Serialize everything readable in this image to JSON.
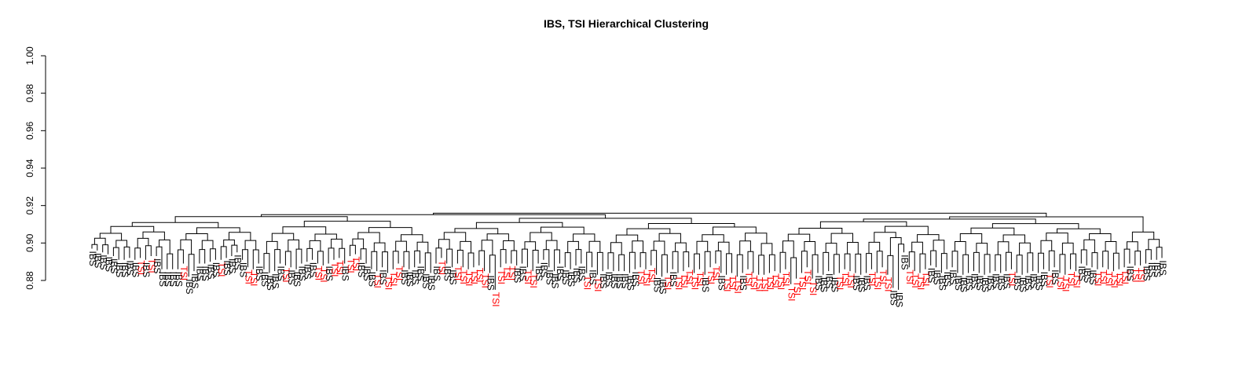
{
  "chart_data": {
    "type": "dendrogram",
    "title": "IBS, TSI Hierarchical Clustering",
    "xlabel": "",
    "ylabel": "",
    "ylim": [
      0.88,
      1.0
    ],
    "y_ticks": [
      "0.88",
      "0.90",
      "0.92",
      "0.94",
      "0.96",
      "0.98",
      "1.00"
    ],
    "root_height": 0.916,
    "grid": false,
    "colors": {
      "IBS": "#000000",
      "TSI": "#ff0000",
      "branches": "#000000"
    },
    "leaves": [
      {
        "label": "IBS",
        "h": 0.897
      },
      {
        "label": "IBS",
        "h": 0.896
      },
      {
        "label": "IBS",
        "h": 0.895
      },
      {
        "label": "IBS",
        "h": 0.894
      },
      {
        "label": "IBS",
        "h": 0.893
      },
      {
        "label": "IBS",
        "h": 0.891
      },
      {
        "label": "IBS",
        "h": 0.891
      },
      {
        "label": "IBS",
        "h": 0.892
      },
      {
        "label": "IBS",
        "h": 0.891
      },
      {
        "label": "TSI",
        "h": 0.892
      },
      {
        "label": "IBS",
        "h": 0.891
      },
      {
        "label": "TSI",
        "h": 0.893
      },
      {
        "label": "IBS",
        "h": 0.893
      },
      {
        "label": "IBS",
        "h": 0.886
      },
      {
        "label": "IBS",
        "h": 0.886
      },
      {
        "label": "IBS",
        "h": 0.886
      },
      {
        "label": "IBS",
        "h": 0.886
      },
      {
        "label": "TSI",
        "h": 0.889
      },
      {
        "label": "IBS",
        "h": 0.882
      },
      {
        "label": "IBS",
        "h": 0.885
      },
      {
        "label": "IBS",
        "h": 0.889
      },
      {
        "label": "IBS",
        "h": 0.889
      },
      {
        "label": "IBS",
        "h": 0.89
      },
      {
        "label": "IBS",
        "h": 0.891
      },
      {
        "label": "TSI",
        "h": 0.891
      },
      {
        "label": "IBS",
        "h": 0.892
      },
      {
        "label": "IBS",
        "h": 0.893
      },
      {
        "label": "IBS",
        "h": 0.895
      },
      {
        "label": "IBS",
        "h": 0.891
      },
      {
        "label": "TSI",
        "h": 0.887
      },
      {
        "label": "TSI",
        "h": 0.886
      },
      {
        "label": "IBS",
        "h": 0.889
      },
      {
        "label": "IBS",
        "h": 0.886
      },
      {
        "label": "IBS",
        "h": 0.884
      },
      {
        "label": "IBS",
        "h": 0.885
      },
      {
        "label": "IBS",
        "h": 0.889
      },
      {
        "label": "TSI",
        "h": 0.888
      },
      {
        "label": "IBS",
        "h": 0.887
      },
      {
        "label": "IBS",
        "h": 0.886
      },
      {
        "label": "IBS",
        "h": 0.889
      },
      {
        "label": "IBS",
        "h": 0.89
      },
      {
        "label": "IBS",
        "h": 0.891
      },
      {
        "label": "TSI",
        "h": 0.889
      },
      {
        "label": "TSI",
        "h": 0.888
      },
      {
        "label": "IBS",
        "h": 0.889
      },
      {
        "label": "TSI",
        "h": 0.891
      },
      {
        "label": "TSI",
        "h": 0.892
      },
      {
        "label": "IBS",
        "h": 0.889
      },
      {
        "label": "TSI",
        "h": 0.893
      },
      {
        "label": "TSI",
        "h": 0.894
      },
      {
        "label": "IBS",
        "h": 0.891
      },
      {
        "label": "IBS",
        "h": 0.889
      },
      {
        "label": "IBS",
        "h": 0.886
      },
      {
        "label": "TSI",
        "h": 0.885
      },
      {
        "label": "IBS",
        "h": 0.887
      },
      {
        "label": "TSI",
        "h": 0.884
      },
      {
        "label": "TSI",
        "h": 0.886
      },
      {
        "label": "TSI",
        "h": 0.889
      },
      {
        "label": "IBS",
        "h": 0.887
      },
      {
        "label": "IBS",
        "h": 0.886
      },
      {
        "label": "IBS",
        "h": 0.887
      },
      {
        "label": "IBS",
        "h": 0.889
      },
      {
        "label": "IBS",
        "h": 0.885
      },
      {
        "label": "IBS",
        "h": 0.884
      },
      {
        "label": "IBS",
        "h": 0.889
      },
      {
        "label": "TSI",
        "h": 0.892
      },
      {
        "label": "IBS",
        "h": 0.889
      },
      {
        "label": "IBS",
        "h": 0.887
      },
      {
        "label": "TSI",
        "h": 0.889
      },
      {
        "label": "TSI",
        "h": 0.887
      },
      {
        "label": "TSI",
        "h": 0.886
      },
      {
        "label": "TSI",
        "h": 0.887
      },
      {
        "label": "TSI",
        "h": 0.888
      },
      {
        "label": "TSI",
        "h": 0.885
      },
      {
        "label": "IBS",
        "h": 0.884
      },
      {
        "label": "TSI",
        "h": 0.875
      },
      {
        "label": "TSI",
        "h": 0.887
      },
      {
        "label": "TSI",
        "h": 0.889
      },
      {
        "label": "TSI",
        "h": 0.889
      },
      {
        "label": "IBS",
        "h": 0.888
      },
      {
        "label": "IBS",
        "h": 0.889
      },
      {
        "label": "TSI",
        "h": 0.887
      },
      {
        "label": "TSI",
        "h": 0.885
      },
      {
        "label": "IBS",
        "h": 0.889
      },
      {
        "label": "IBS",
        "h": 0.891
      },
      {
        "label": "IBS",
        "h": 0.887
      },
      {
        "label": "IBS",
        "h": 0.885
      },
      {
        "label": "IBS",
        "h": 0.889
      },
      {
        "label": "IBS",
        "h": 0.887
      },
      {
        "label": "IBS",
        "h": 0.886
      },
      {
        "label": "IBS",
        "h": 0.888
      },
      {
        "label": "IBS",
        "h": 0.889
      },
      {
        "label": "TSI",
        "h": 0.884
      },
      {
        "label": "IBS",
        "h": 0.887
      },
      {
        "label": "TSI",
        "h": 0.883
      },
      {
        "label": "IBS",
        "h": 0.885
      },
      {
        "label": "IBS",
        "h": 0.886
      },
      {
        "label": "IBS",
        "h": 0.885
      },
      {
        "label": "IBS",
        "h": 0.885
      },
      {
        "label": "IBS",
        "h": 0.885
      },
      {
        "label": "IBS",
        "h": 0.884
      },
      {
        "label": "IBS",
        "h": 0.886
      },
      {
        "label": "TSI",
        "h": 0.887
      },
      {
        "label": "TSI",
        "h": 0.886
      },
      {
        "label": "TSI",
        "h": 0.888
      },
      {
        "label": "IBS",
        "h": 0.883
      },
      {
        "label": "IBS",
        "h": 0.882
      },
      {
        "label": "TSI",
        "h": 0.884
      },
      {
        "label": "IBS",
        "h": 0.886
      },
      {
        "label": "TSI",
        "h": 0.884
      },
      {
        "label": "TSI",
        "h": 0.885
      },
      {
        "label": "TSI",
        "h": 0.887
      },
      {
        "label": "TSI",
        "h": 0.884
      },
      {
        "label": "TSI",
        "h": 0.886
      },
      {
        "label": "IBS",
        "h": 0.883
      },
      {
        "label": "TSI",
        "h": 0.887
      },
      {
        "label": "TSI",
        "h": 0.889
      },
      {
        "label": "IBS",
        "h": 0.884
      },
      {
        "label": "TSI",
        "h": 0.883
      },
      {
        "label": "TSI",
        "h": 0.884
      },
      {
        "label": "TSI",
        "h": 0.882
      },
      {
        "label": "IBS",
        "h": 0.884
      },
      {
        "label": "TSI",
        "h": 0.886
      },
      {
        "label": "TSI",
        "h": 0.884
      },
      {
        "label": "TSI",
        "h": 0.883
      },
      {
        "label": "TSI",
        "h": 0.883
      },
      {
        "label": "TSI",
        "h": 0.884
      },
      {
        "label": "TSI",
        "h": 0.885
      },
      {
        "label": "TSI",
        "h": 0.884
      },
      {
        "label": "TSI",
        "h": 0.886
      },
      {
        "label": "TSI",
        "h": 0.878
      },
      {
        "label": "TSI",
        "h": 0.881
      },
      {
        "label": "TSI",
        "h": 0.884
      },
      {
        "label": "TSI",
        "h": 0.887
      },
      {
        "label": "TSI",
        "h": 0.881
      },
      {
        "label": "IBS",
        "h": 0.884
      },
      {
        "label": "IBS",
        "h": 0.883
      },
      {
        "label": "IBS",
        "h": 0.885
      },
      {
        "label": "IBS",
        "h": 0.883
      },
      {
        "label": "TSI",
        "h": 0.884
      },
      {
        "label": "TSI",
        "h": 0.886
      },
      {
        "label": "TSI",
        "h": 0.885
      },
      {
        "label": "IBS",
        "h": 0.884
      },
      {
        "label": "IBS",
        "h": 0.883
      },
      {
        "label": "IBS",
        "h": 0.884
      },
      {
        "label": "TSI",
        "h": 0.886
      },
      {
        "label": "TSI",
        "h": 0.884
      },
      {
        "label": "TSI",
        "h": 0.887
      },
      {
        "label": "TSI",
        "h": 0.883
      },
      {
        "label": "IBS",
        "h": 0.876
      },
      {
        "label": "IBS",
        "h": 0.875
      },
      {
        "label": "IBS",
        "h": 0.895
      },
      {
        "label": "TSI",
        "h": 0.887
      },
      {
        "label": "TSI",
        "h": 0.885
      },
      {
        "label": "TSI",
        "h": 0.884
      },
      {
        "label": "TSI",
        "h": 0.886
      },
      {
        "label": "IBS",
        "h": 0.888
      },
      {
        "label": "IBS",
        "h": 0.887
      },
      {
        "label": "IBS",
        "h": 0.884
      },
      {
        "label": "IBS",
        "h": 0.886
      },
      {
        "label": "IBS",
        "h": 0.887
      },
      {
        "label": "IBS",
        "h": 0.884
      },
      {
        "label": "IBS",
        "h": 0.883
      },
      {
        "label": "IBS",
        "h": 0.884
      },
      {
        "label": "IBS",
        "h": 0.885
      },
      {
        "label": "IBS",
        "h": 0.884
      },
      {
        "label": "IBS",
        "h": 0.883
      },
      {
        "label": "IBS",
        "h": 0.884
      },
      {
        "label": "IBS",
        "h": 0.885
      },
      {
        "label": "IBS",
        "h": 0.884
      },
      {
        "label": "IBS",
        "h": 0.885
      },
      {
        "label": "TSI",
        "h": 0.886
      },
      {
        "label": "IBS",
        "h": 0.884
      },
      {
        "label": "IBS",
        "h": 0.883
      },
      {
        "label": "IBS",
        "h": 0.884
      },
      {
        "label": "IBS",
        "h": 0.885
      },
      {
        "label": "IBS",
        "h": 0.884
      },
      {
        "label": "IBS",
        "h": 0.886
      },
      {
        "label": "TSI",
        "h": 0.885
      },
      {
        "label": "IBS",
        "h": 0.887
      },
      {
        "label": "TSI",
        "h": 0.884
      },
      {
        "label": "TSI",
        "h": 0.883
      },
      {
        "label": "TSI",
        "h": 0.886
      },
      {
        "label": "TSI",
        "h": 0.885
      },
      {
        "label": "IBS",
        "h": 0.889
      },
      {
        "label": "IBS",
        "h": 0.888
      },
      {
        "label": "IBS",
        "h": 0.887
      },
      {
        "label": "TSI",
        "h": 0.886
      },
      {
        "label": "TSI",
        "h": 0.887
      },
      {
        "label": "TSI",
        "h": 0.886
      },
      {
        "label": "TSI",
        "h": 0.885
      },
      {
        "label": "TSI",
        "h": 0.886
      },
      {
        "label": "TSI",
        "h": 0.887
      },
      {
        "label": "IBS",
        "h": 0.889
      },
      {
        "label": "TSI",
        "h": 0.888
      },
      {
        "label": "TSI",
        "h": 0.888
      },
      {
        "label": "IBS",
        "h": 0.889
      },
      {
        "label": "IBS",
        "h": 0.891
      },
      {
        "label": "IBS",
        "h": 0.891
      },
      {
        "label": "IBS",
        "h": 0.892
      }
    ]
  }
}
